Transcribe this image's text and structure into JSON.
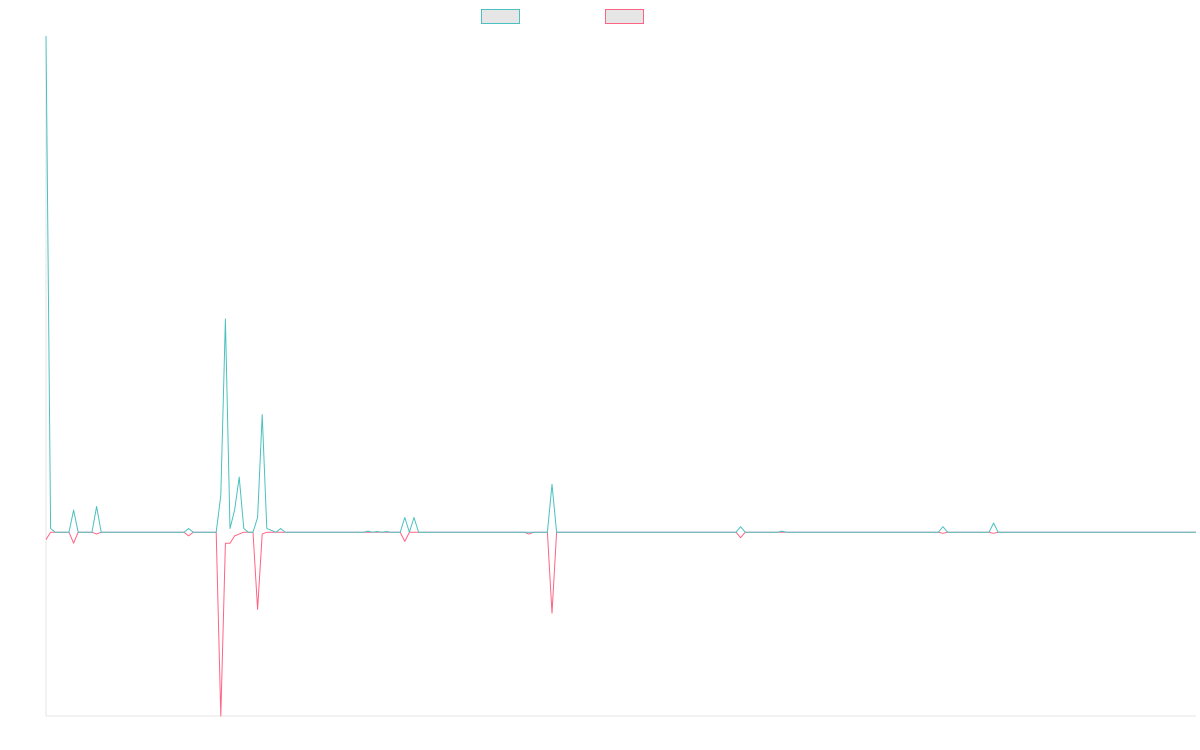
{
  "colors": {
    "series_a": "#4bc0c0",
    "series_b": "#ff6384",
    "axis": "#e5e5e5",
    "legend_fill": "#e6e6e6"
  },
  "chart_data": {
    "type": "line",
    "title": "",
    "xlabel": "",
    "ylabel": "",
    "legend_position": "top-center",
    "grid": false,
    "x_count": 251,
    "ylim": [
      -50,
      135
    ],
    "series": [
      {
        "name": "",
        "color_key": "series_a",
        "points": [
          [
            0,
            135
          ],
          [
            1,
            1
          ],
          [
            2,
            0
          ],
          [
            3,
            0
          ],
          [
            4,
            0
          ],
          [
            5,
            0
          ],
          [
            6,
            6
          ],
          [
            7,
            0
          ],
          [
            8,
            0
          ],
          [
            9,
            0
          ],
          [
            10,
            0
          ],
          [
            11,
            7
          ],
          [
            12,
            0
          ],
          [
            30,
            0
          ],
          [
            31,
            1
          ],
          [
            32,
            0
          ],
          [
            37,
            0
          ],
          [
            38,
            10
          ],
          [
            39,
            58
          ],
          [
            40,
            1
          ],
          [
            41,
            6
          ],
          [
            42,
            15
          ],
          [
            43,
            1
          ],
          [
            44,
            0
          ],
          [
            45,
            0
          ],
          [
            46,
            4
          ],
          [
            47,
            32
          ],
          [
            48,
            1
          ],
          [
            50,
            0
          ],
          [
            51,
            1
          ],
          [
            52,
            0
          ],
          [
            69,
            0
          ],
          [
            70,
            0.3
          ],
          [
            71,
            0
          ],
          [
            72,
            0.2
          ],
          [
            73,
            0
          ],
          [
            74,
            0.2
          ],
          [
            75,
            0
          ],
          [
            77,
            0
          ],
          [
            78,
            4
          ],
          [
            79,
            0
          ],
          [
            80,
            4
          ],
          [
            81,
            0
          ],
          [
            96,
            0
          ],
          [
            97,
            0
          ],
          [
            98,
            0
          ],
          [
            99,
            0
          ],
          [
            100,
            0
          ],
          [
            101,
            0
          ],
          [
            102,
            0
          ],
          [
            103,
            0
          ],
          [
            104,
            0
          ],
          [
            105,
            0
          ],
          [
            106,
            0
          ],
          [
            107,
            0
          ],
          [
            108,
            0
          ],
          [
            109,
            0
          ],
          [
            110,
            13
          ],
          [
            111,
            0
          ],
          [
            140,
            0
          ],
          [
            150,
            0
          ],
          [
            151,
            1.5
          ],
          [
            152,
            0
          ],
          [
            159,
            0
          ],
          [
            160,
            0.3
          ],
          [
            161,
            0
          ],
          [
            194,
            0
          ],
          [
            195,
            1.5
          ],
          [
            196,
            0
          ],
          [
            205,
            0
          ],
          [
            206,
            2.5
          ],
          [
            207,
            0
          ],
          [
            250,
            0
          ]
        ]
      },
      {
        "name": "",
        "color_key": "series_b",
        "points": [
          [
            0,
            -2
          ],
          [
            1,
            0
          ],
          [
            2,
            0
          ],
          [
            3,
            0
          ],
          [
            4,
            0
          ],
          [
            5,
            0
          ],
          [
            6,
            -3
          ],
          [
            7,
            0
          ],
          [
            8,
            0
          ],
          [
            9,
            0
          ],
          [
            10,
            0
          ],
          [
            11,
            -0.5
          ],
          [
            12,
            0
          ],
          [
            30,
            0
          ],
          [
            31,
            -1
          ],
          [
            32,
            0
          ],
          [
            37,
            0
          ],
          [
            38,
            -50
          ],
          [
            39,
            -3
          ],
          [
            40,
            -3
          ],
          [
            41,
            -1
          ],
          [
            42,
            -0.5
          ],
          [
            43,
            0
          ],
          [
            44,
            0
          ],
          [
            45,
            0
          ],
          [
            46,
            -21
          ],
          [
            47,
            -0.5
          ],
          [
            48,
            0
          ],
          [
            50,
            0
          ],
          [
            51,
            0
          ],
          [
            52,
            0
          ],
          [
            70,
            0
          ],
          [
            71,
            0
          ],
          [
            72,
            0
          ],
          [
            73,
            0
          ],
          [
            74,
            0
          ],
          [
            75,
            0
          ],
          [
            77,
            0
          ],
          [
            78,
            -2.5
          ],
          [
            79,
            0
          ],
          [
            80,
            0
          ],
          [
            81,
            0
          ],
          [
            104,
            0
          ],
          [
            105,
            -0.5
          ],
          [
            106,
            0
          ],
          [
            109,
            0
          ],
          [
            110,
            -22
          ],
          [
            111,
            0
          ],
          [
            150,
            0
          ],
          [
            151,
            -1.5
          ],
          [
            152,
            0
          ],
          [
            194,
            0
          ],
          [
            195,
            -0.3
          ],
          [
            196,
            0
          ],
          [
            205,
            0
          ],
          [
            206,
            -0.3
          ],
          [
            207,
            0
          ],
          [
            250,
            0
          ]
        ]
      }
    ]
  }
}
